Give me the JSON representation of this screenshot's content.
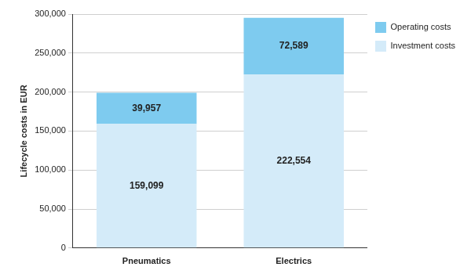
{
  "chart_data": {
    "type": "bar",
    "categories": [
      "Pneumatics",
      "Electrics"
    ],
    "series": [
      {
        "name": "Investment costs",
        "color": "#d4ebf9",
        "values": [
          159099,
          222554
        ],
        "value_labels": [
          "159,099",
          "222,554"
        ]
      },
      {
        "name": "Operating costs",
        "color": "#7ecbef",
        "values": [
          39957,
          72589
        ],
        "value_labels": [
          "39,957",
          "72,589"
        ]
      }
    ],
    "y_label": "Lifecycle costs in EUR",
    "ylim": [
      0,
      300000
    ],
    "yticks": [
      0,
      {
        "value": 50000,
        "label": "50,000"
      },
      {
        "value": 100000,
        "label": "100,000"
      },
      {
        "value": 150000,
        "label": "150,000"
      },
      {
        "value": 200000,
        "label": "200,000"
      },
      {
        "value": 250000,
        "label": "250,000"
      },
      {
        "value": 300000,
        "label": "300,000"
      }
    ],
    "stacked": true,
    "data_labels": true,
    "grid": true,
    "legend": "upper right"
  }
}
